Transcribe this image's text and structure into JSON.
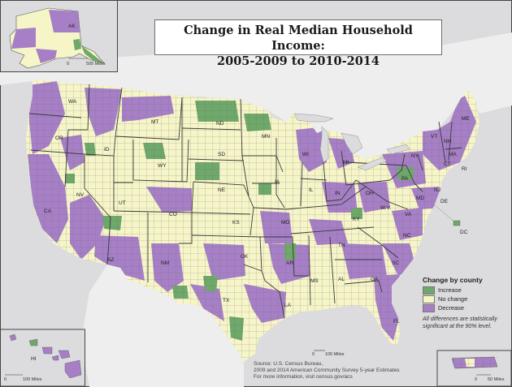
{
  "title": {
    "line1": "Change in Real Median Household Income:",
    "line2": "2005-2009 to 2010-2014"
  },
  "colors": {
    "increase": "#6ea86a",
    "no_change": "#f6f5c8",
    "decrease": "#a67fc6",
    "water": "#dcdcde",
    "border": "#555555"
  },
  "legend": {
    "title": "Change by county",
    "items": [
      {
        "label": "Increase",
        "color": "#6ea86a"
      },
      {
        "label": "No change",
        "color": "#f6f5c8"
      },
      {
        "label": "Decrease",
        "color": "#a67fc6"
      }
    ],
    "note_line1": "All differences are statistically",
    "note_line2": "significant at the 90% level."
  },
  "source": {
    "line1": "Source: U.S. Census Bureau,",
    "line2": "2009 and 2014 American Community Survey 5-year Estimates",
    "line3": "For more information, visit census.gov/acs"
  },
  "scale_bars": {
    "main_0": "0",
    "main_100": "100 Miles",
    "ak_0": "0",
    "ak_500": "500 Miles",
    "hi_0": "0",
    "hi_100": "100 Miles",
    "pr_0": "0",
    "pr_50": "50 Miles"
  },
  "state_labels": [
    {
      "id": "AK",
      "text": "AK"
    },
    {
      "id": "HI",
      "text": "HI"
    },
    {
      "id": "WA",
      "text": "WA"
    },
    {
      "id": "OR",
      "text": "OR"
    },
    {
      "id": "CA",
      "text": "CA"
    },
    {
      "id": "ID",
      "text": "ID"
    },
    {
      "id": "NV",
      "text": "NV"
    },
    {
      "id": "MT",
      "text": "MT"
    },
    {
      "id": "WY",
      "text": "WY"
    },
    {
      "id": "UT",
      "text": "UT"
    },
    {
      "id": "AZ",
      "text": "AZ"
    },
    {
      "id": "CO",
      "text": "CO"
    },
    {
      "id": "NM",
      "text": "NM"
    },
    {
      "id": "ND",
      "text": "ND"
    },
    {
      "id": "SD",
      "text": "SD"
    },
    {
      "id": "NE",
      "text": "NE"
    },
    {
      "id": "KS",
      "text": "KS"
    },
    {
      "id": "OK",
      "text": "OK"
    },
    {
      "id": "TX",
      "text": "TX"
    },
    {
      "id": "MN",
      "text": "MN"
    },
    {
      "id": "IA",
      "text": "IA"
    },
    {
      "id": "MO",
      "text": "MO"
    },
    {
      "id": "AR",
      "text": "AR"
    },
    {
      "id": "LA",
      "text": "LA"
    },
    {
      "id": "WI",
      "text": "WI"
    },
    {
      "id": "IL",
      "text": "IL"
    },
    {
      "id": "MI",
      "text": "MI"
    },
    {
      "id": "IN",
      "text": "IN"
    },
    {
      "id": "OH",
      "text": "OH"
    },
    {
      "id": "KY",
      "text": "KY"
    },
    {
      "id": "TN",
      "text": "TN"
    },
    {
      "id": "MS",
      "text": "MS"
    },
    {
      "id": "AL",
      "text": "AL"
    },
    {
      "id": "GA",
      "text": "GA"
    },
    {
      "id": "FL",
      "text": "FL"
    },
    {
      "id": "SC",
      "text": "SC"
    },
    {
      "id": "NC",
      "text": "NC"
    },
    {
      "id": "VA",
      "text": "VA"
    },
    {
      "id": "WV",
      "text": "W.V."
    },
    {
      "id": "PA",
      "text": "PA"
    },
    {
      "id": "NY",
      "text": "NY"
    },
    {
      "id": "VT",
      "text": "VT"
    },
    {
      "id": "NH",
      "text": "NH"
    },
    {
      "id": "ME",
      "text": "ME"
    },
    {
      "id": "MA",
      "text": "MA"
    },
    {
      "id": "CT",
      "text": "CT"
    },
    {
      "id": "RI",
      "text": "RI"
    },
    {
      "id": "NJ",
      "text": "NJ"
    },
    {
      "id": "DE",
      "text": "DE"
    },
    {
      "id": "MD",
      "text": "MD"
    },
    {
      "id": "DC",
      "text": "DC"
    }
  ]
}
